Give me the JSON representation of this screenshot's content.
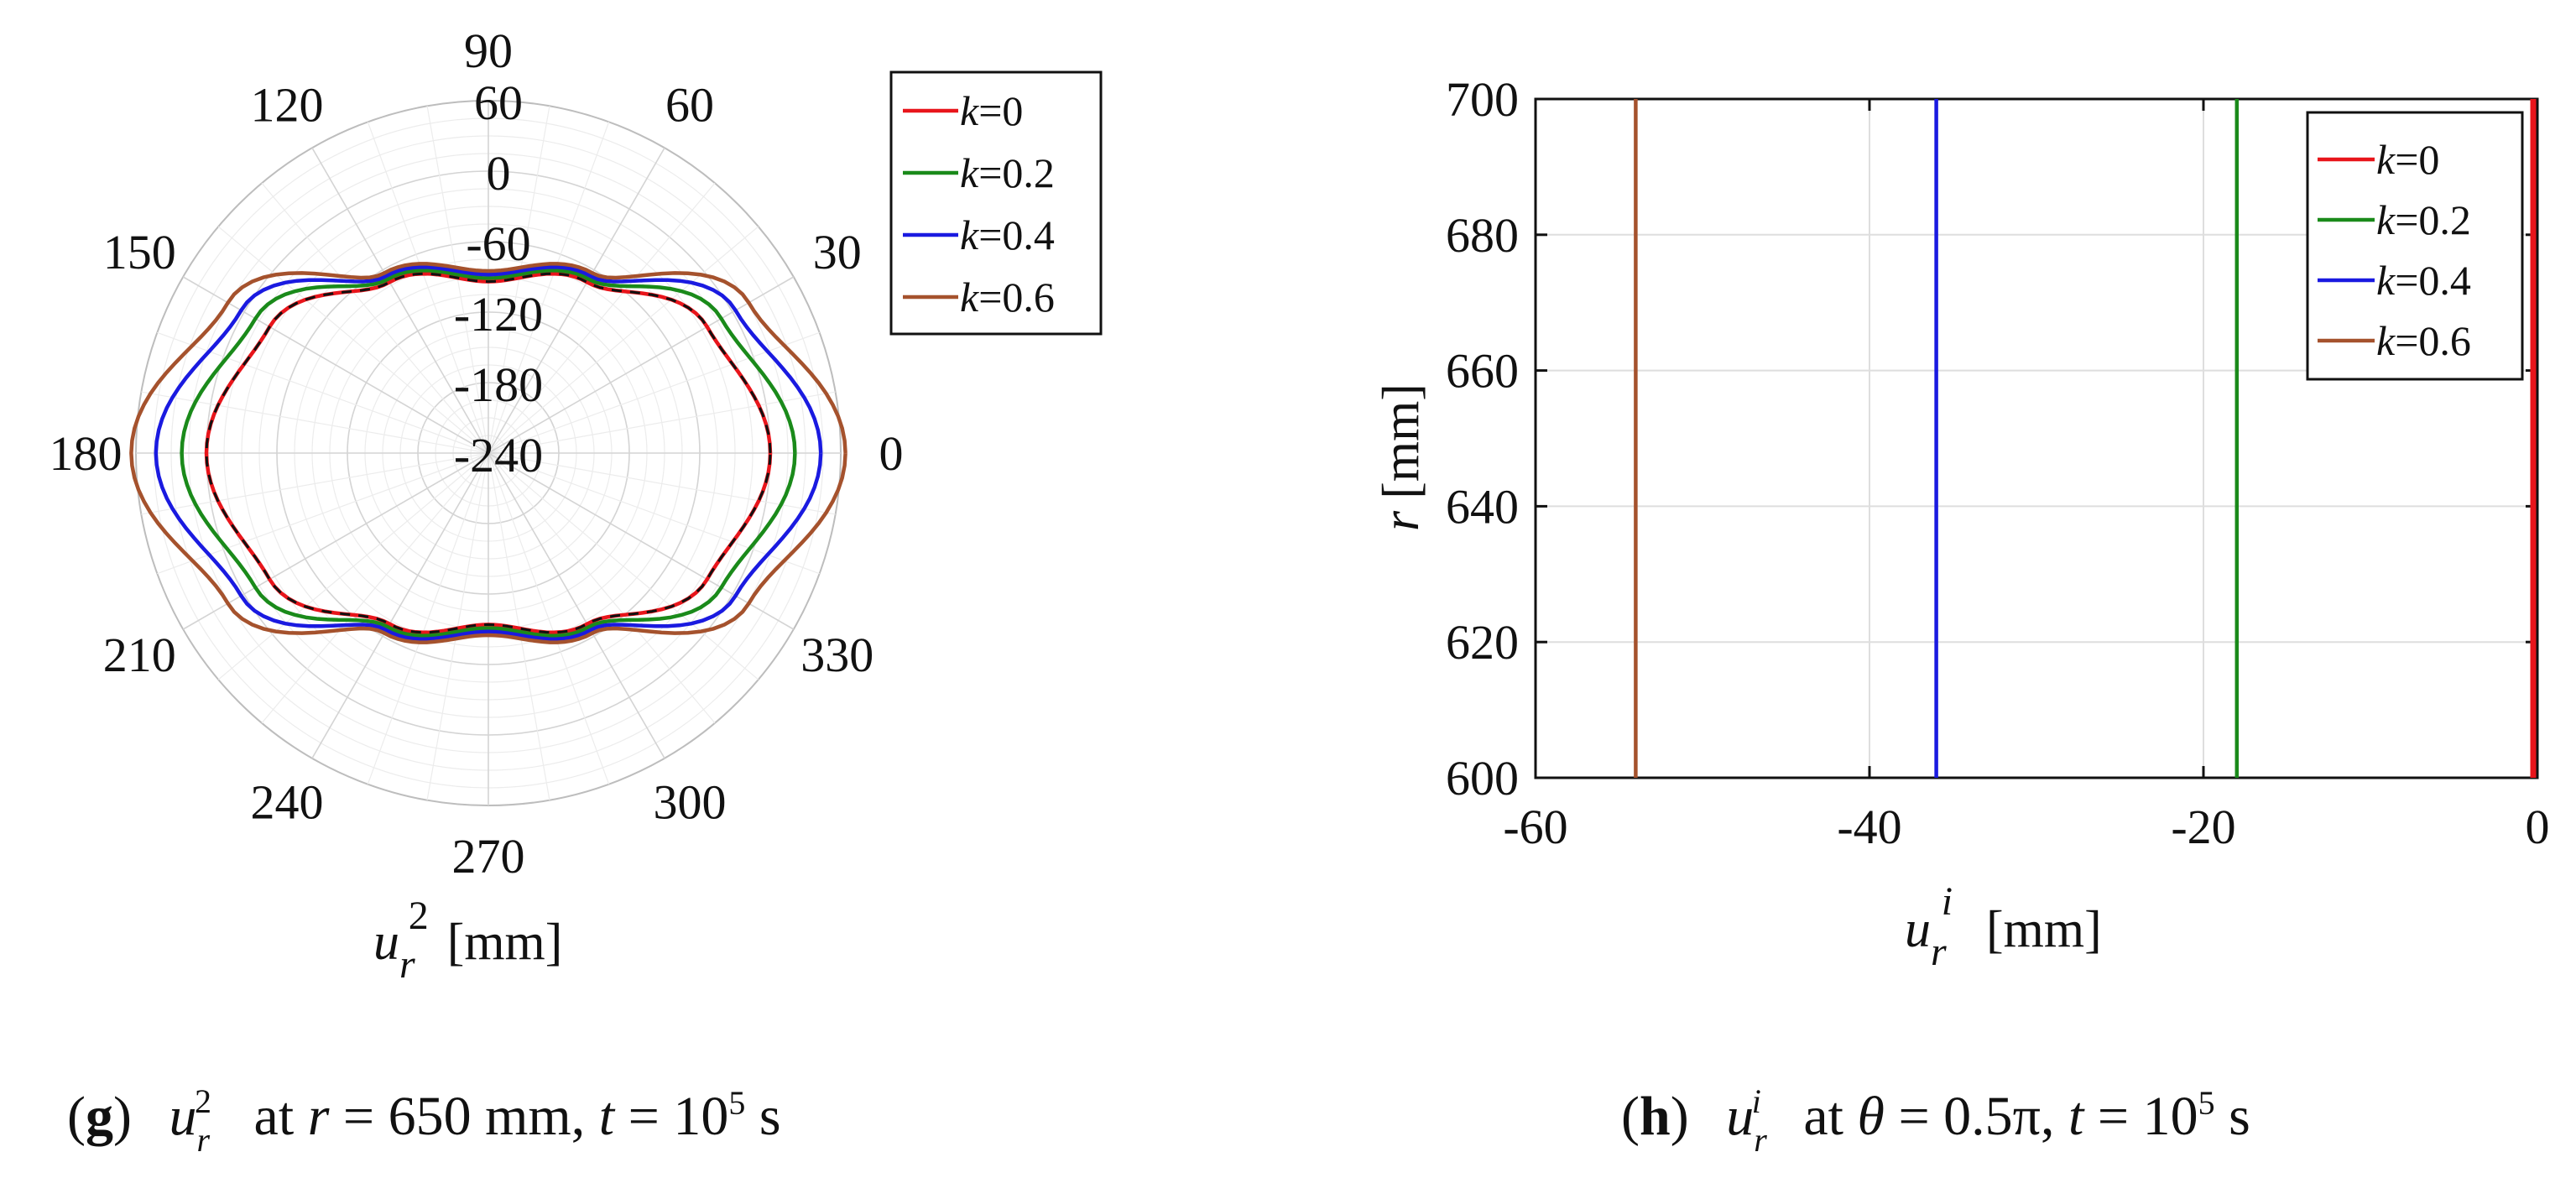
{
  "chart_data": [
    {
      "panel": "g",
      "type": "polar-line",
      "theta_unit": "degrees",
      "theta_ticks": [
        0,
        30,
        60,
        90,
        120,
        150,
        180,
        210,
        240,
        270,
        300,
        330
      ],
      "theta_tick_labels": [
        "0",
        "30",
        "60",
        "90",
        "120",
        "150",
        "180",
        "210",
        "240",
        "270",
        "300",
        "330"
      ],
      "r_ticks": [
        -240,
        -180,
        -120,
        -60,
        0,
        60
      ],
      "r_tick_labels": [
        "-240",
        "-180",
        "-120",
        "-60",
        "0",
        "60"
      ],
      "rlim": [
        -240,
        60
      ],
      "grid": true,
      "xlabel": {
        "main": "u",
        "sub": "r",
        "sup": "2",
        "unit": "[mm]"
      },
      "legend_position": "top-right",
      "series": [
        {
          "name": "k=0",
          "k": "0",
          "color": "#e8151b",
          "theta": [
            0,
            30,
            60,
            90,
            120,
            150,
            180,
            210,
            240,
            270,
            300,
            330
          ],
          "r": [
            0,
            -25,
            -72,
            -94,
            -72,
            -25,
            0,
            -25,
            -72,
            -94,
            -72,
            -25
          ]
        },
        {
          "name": "k=0.2",
          "k": "0.2",
          "color": "#1a8a1a",
          "theta": [
            0,
            30,
            60,
            90,
            120,
            150,
            180,
            210,
            240,
            270,
            300,
            330
          ],
          "r": [
            21,
            -11,
            -69,
            -91,
            -69,
            -11,
            21,
            -11,
            -69,
            -91,
            -69,
            -11
          ]
        },
        {
          "name": "k=0.4",
          "k": "0.4",
          "color": "#1a1ae0",
          "theta": [
            0,
            30,
            60,
            90,
            120,
            150,
            180,
            210,
            240,
            270,
            300,
            330
          ],
          "r": [
            43,
            3,
            -66,
            -88,
            -66,
            3,
            43,
            3,
            -66,
            -88,
            -66,
            3
          ]
        },
        {
          "name": "k=0.6",
          "k": "0.6",
          "color": "#a5522d",
          "theta": [
            0,
            30,
            60,
            90,
            120,
            150,
            180,
            210,
            240,
            270,
            300,
            330
          ],
          "r": [
            64,
            16,
            -63,
            -85,
            -63,
            16,
            64,
            16,
            -63,
            -85,
            -63,
            16
          ]
        }
      ]
    },
    {
      "panel": "h",
      "type": "line",
      "xlim": [
        -60,
        0
      ],
      "ylim": [
        600,
        700
      ],
      "x_ticks": [
        -60,
        -40,
        -20,
        0
      ],
      "y_ticks": [
        600,
        620,
        640,
        660,
        680,
        700
      ],
      "grid": true,
      "xlabel": {
        "main": "u",
        "sub": "r",
        "sup": "i",
        "unit": "[mm]"
      },
      "ylabel": {
        "main": "r",
        "unit": "[mm]"
      },
      "legend_position": "top-right",
      "series": [
        {
          "name": "k=0",
          "k": "0",
          "color": "#e8151b",
          "x": [
            0,
            0
          ],
          "y": [
            600,
            700
          ]
        },
        {
          "name": "k=0.2",
          "k": "0.2",
          "color": "#1a8a1a",
          "x": [
            -18,
            -18
          ],
          "y": [
            600,
            700
          ]
        },
        {
          "name": "k=0.4",
          "k": "0.4",
          "color": "#1a1ae0",
          "x": [
            -36,
            -36
          ],
          "y": [
            600,
            700
          ]
        },
        {
          "name": "k=0.6",
          "k": "0.6",
          "color": "#a5522d",
          "x": [
            -54,
            -54
          ],
          "y": [
            600,
            700
          ]
        }
      ]
    }
  ],
  "captions": {
    "g": {
      "letter": "g",
      "var_main": "u",
      "var_sub": "r",
      "var_sup": "2",
      "text1": "at",
      "cond1_var": "r",
      "cond1_rest": "= 650 mm,",
      "cond2_var": "t",
      "cond2_rest": "= 10",
      "cond2_exp": "5",
      "cond2_unit": "s"
    },
    "h": {
      "letter": "h",
      "var_main": "u",
      "var_sub": "r",
      "var_sup": "i",
      "text1": "at",
      "cond1_var": "θ",
      "cond1_rest": "= 0.5π,",
      "cond2_var": "t",
      "cond2_rest": "= 10",
      "cond2_exp": "5",
      "cond2_unit": "s"
    }
  }
}
